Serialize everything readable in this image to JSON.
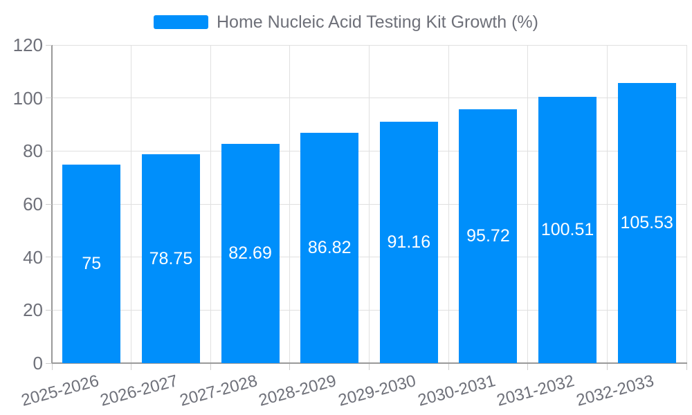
{
  "legend": {
    "label": "Home Nucleic Acid Testing Kit Growth (%)"
  },
  "chart_data": {
    "type": "bar",
    "title": "Home Nucleic Acid Testing Kit Growth (%)",
    "series_name": "Home Nucleic Acid Testing Kit Growth (%)",
    "categories": [
      "2025-2026",
      "2026-2027",
      "2027-2028",
      "2028-2029",
      "2029-2030",
      "2030-2031",
      "2031-2032",
      "2032-2033"
    ],
    "values": [
      75,
      78.75,
      82.69,
      86.82,
      91.16,
      95.72,
      100.51,
      105.53
    ],
    "data_labels": [
      "75",
      "78.75",
      "82.69",
      "86.82",
      "91.16",
      "95.72",
      "100.51",
      "105.53"
    ],
    "xlabel": "",
    "ylabel": "",
    "ylim": [
      0,
      120
    ],
    "y_ticks": [
      0,
      20,
      40,
      60,
      80,
      100,
      120
    ],
    "grid": true,
    "legend_position": "top",
    "x_label_rotation_deg": -15
  },
  "colors": {
    "bar": "#008FFB",
    "data_label": "#FFFFFF",
    "axis_line": "#999999",
    "tick_mark": "#CCCCCC",
    "grid_line": "#E0E0E0",
    "tick_label": "#6E7079",
    "legend_text": "#6E7079",
    "background": "#FFFFFF"
  }
}
